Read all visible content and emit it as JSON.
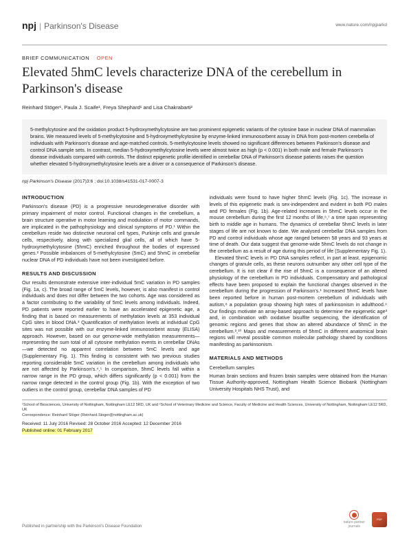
{
  "header": {
    "npj": "npj",
    "journal": "Parkinson's Disease",
    "url": "www.nature.com/npjparkd"
  },
  "article_type": "BRIEF COMMUNICATION",
  "open_label": "OPEN",
  "title": "Elevated 5hmC levels characterize DNA of the cerebellum in Parkinson's disease",
  "authors": "Reinhard Stöger¹, Paula J. Scaife¹, Freya Shephard¹ and Lisa Chakrabarti²",
  "abstract": "5-methylcytosine and the oxidation product 5-hydroxymethylcytosine are two prominent epigenetic variants of the cytosine base in nuclear DNA of mammalian brains. We measured levels of 5-methylcytosine and 5-hydroxymethylcytosine by enzyme-linked immunosorbent assay in DNA from post-mortem cerebella of individuals with Parkinson's disease and age-matched controls. 5-methylcytosine levels showed no significant differences between Parkinson's disease and control DNA sample sets. In contrast, median 5-hydroxymethylcytosine levels were almost twice as high (p < 0.001) in both male and female Parkinson's disease individuals compared with controls. The distinct epigenetic profile identified in cerebellar DNA of Parkinson's disease patients raises the question whether elevated 5-hydroxymethylcytosine levels are a driver or a consequence of Parkinson's disease.",
  "citation_journal": "npj Parkinson's Disease",
  "citation_rest": " (2017)3:6 ; doi:10.1038/s41531-017-0007-3",
  "sections": {
    "intro_head": "INTRODUCTION",
    "intro_body": "Parkinson's disease (PD) is a progressive neurodegenerative disorder with primary impairment of motor control. Functional changes in the cerebellum, a brain structure operative in motor learning and modulation of motor commands, are implicated in the pathophysiology and clinical symptoms of PD.¹ Within the cerebellum reside two distinctive neuronal cell types, Purkinje cells and granule cells, respectively, along with specialized glial cells, all of which have 5-hydroxymethylcytosine (5hmC) enriched throughout the bodies of expressed genes.² Possible imbalances of 5-methylcytosine (5mC) and 5hmC in cerebellar nuclear DNA of PD individuals have not been investigated before.",
    "results_head": "RESULTS AND DISCUSSION",
    "results_p1": "Our results demonstrate extensive inter-individual 5mC variation in PD samples (Fig. 1a, c). The broad range of 5mC levels, however, is also manifest in control individuals and does not differ between the two cohorts. Age was considered as a factor contributing to the variability of 5mC levels among individuals. Indeed, PD patients were reported earlier to have an accelerated epigenetic age, a finding that is based on measurements of methylation levels at 353 individual CpG sites in blood DNA.³ Quantification of methylation levels at individual CpG sites was not possible with our enzyme-linked immunosorbent assay (ELISA) approach. However, based on our genome-wide methylation measurements—representing the sum total of all cytosine methylation events in cerebellar DNAs—we detected no apparent correlation between 5mC levels and age (Supplementary Fig. 1). This finding is consistent with two previous studies reporting considerable 5mC variation in the cerebellum among individuals who are not affected by Parkinson's.⁴,⁵ In comparison, 5hmC levels fall within a narrow range in the PD group, which differs significantly (p < 0.001) from the narrow range detected in the control group (Fig. 1b). With the exception of two outliers in the control group, cerebellar DNA samples of PD",
    "col2_p1": "individuals were found to have higher 5hmC levels (Fig. 1c). The increase in levels of this epigenetic mark is sex-independent and evident in both PD males and PD females (Fig. 1b). Age-related increases in 5hmC levels occur in the mouse cerebellum during the first 12 months of life,⁶,⁷ a time span representing birth to middle age in humans. The dynamics of cerebellar 5hmC levels in later stages of life are not known to date. We analysed cerebellar DNA samples from PD and control individuals whose age ranged between 58 years and 93 years at time of death. Our data suggest that genome-wide 5hmC levels do not change in the cerebellum as a result of age during this period of life (Supplementary Fig. 1).",
    "col2_p2": "Elevated 5hmC levels in PD DNA samples reflect, in part at least, epigenomic changes of granule cells, as these neurons outnumber any other cell type of the cerebellum. It is not clear if the rise of 5hmC is a consequence of an altered physiology of the cerebellum in PD individuals. Compensatory and pathological effects have been proposed to explain the functional changes observed in the cerebellum during the progression of Parkinson's.¹ Increased 5hmC levels have been reported before in human post-mortem cerebellum of individuals with autism,⁸ a population group showing high rates of parkinsonism in adulthood.⁹ Our findings motivate an array-based approach to determine the epigenetic age³ and, in combination with oxidative bisulfite sequencing, the identification of genomic regions and genes that show an altered abundance of 5hmC in the cerebellum.²,¹⁰ Maps and measurements of 5hmC in different anatomical brain regions will reveal possible common molecular pathology shared by conditions manifesting as parkinsonism.",
    "methods_head": "MATERIALS AND METHODS",
    "methods_sub": "Cerebellum samples",
    "methods_body": "Human brain sections and frozen brain samples were obtained from the Human Tissue Authority-approved, Nottingham Health Science Biobank (Nottingham University Hospitals NHS Trust), and"
  },
  "affiliations": "¹School of Biosciences, University of Nottingham, Nottingham LE12 5RD, UK and ²School of Veterinary Medicine and Science, Faculty of Medicine and Health Sciences, University of Nottingham, Nottingham LE12 5RD, UK",
  "correspondence": "Correspondence: Reinhard Stöger (Reinhard.Stoger@nottingham.ac.uk)",
  "dates": "Received: 11 July 2016 Revised: 28 October 2016 Accepted: 12 December 2016",
  "pub_online": "Published online: 01 February 2017",
  "footer_text": "Published in partnership with the Parkinson's Disease Foundation",
  "np_label1": "nature partner",
  "np_label2": "journals",
  "colors": {
    "accent": "#c94d2f",
    "link": "#2a5db0",
    "abstract_bg": "#f3f3f3",
    "highlight": "#ffff9e"
  }
}
